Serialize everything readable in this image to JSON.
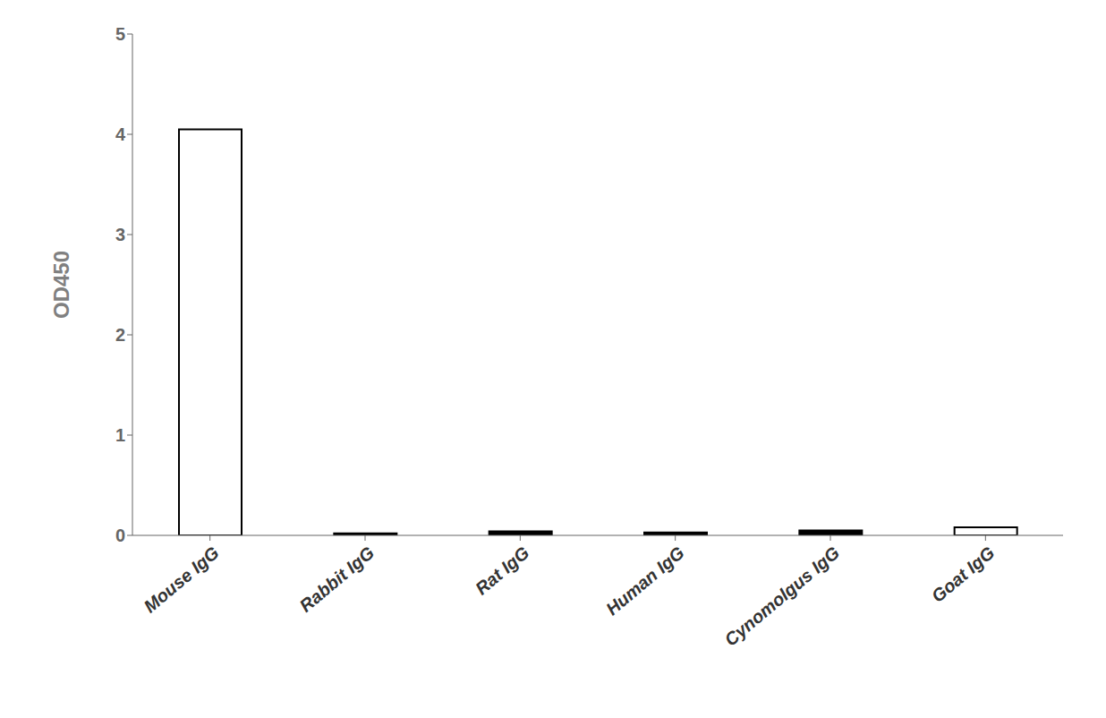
{
  "chart_data": {
    "type": "bar",
    "categories": [
      "Mouse IgG",
      "Rabbit IgG",
      "Rat IgG",
      "Human IgG",
      "Cynomolgus IgG",
      "Goat IgG"
    ],
    "values": [
      4.05,
      0.02,
      0.04,
      0.03,
      0.05,
      0.08
    ],
    "ylabel": "OD450",
    "ylim": [
      0,
      5
    ],
    "yticks": [
      0,
      1,
      2,
      3,
      4,
      5
    ],
    "colors": [
      "#ffffff",
      "#000000",
      "#000000",
      "#000000",
      "#000000",
      "#ffffff"
    ],
    "grid": false
  }
}
